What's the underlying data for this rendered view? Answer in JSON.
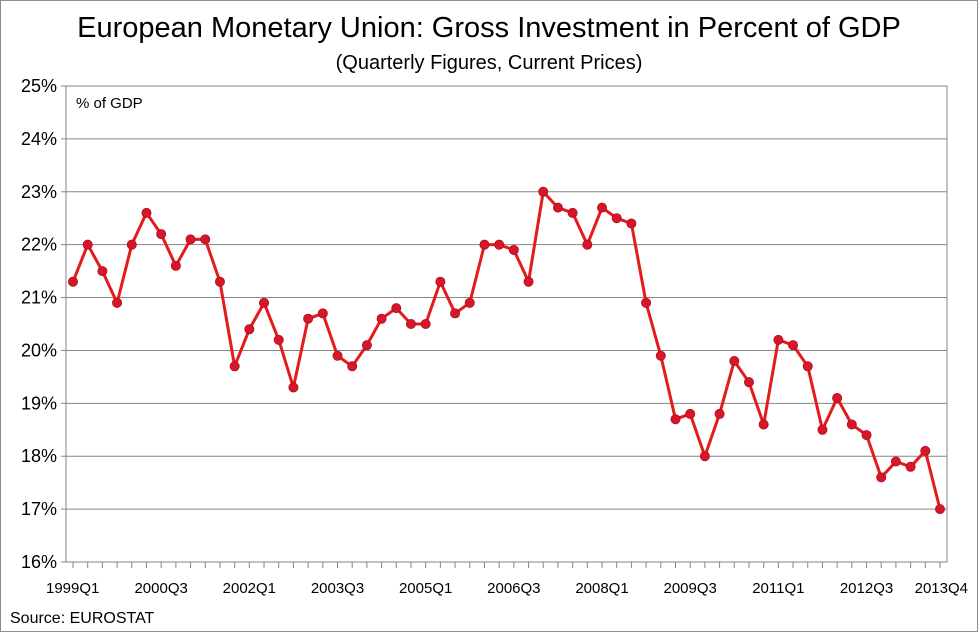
{
  "title": "European Monetary Union: Gross Investment in Percent of GDP",
  "subtitle": "(Quarterly Figures, Current Prices)",
  "source": "Source: EUROSTAT",
  "chart_data": {
    "type": "line",
    "title": "European Monetary Union: Gross Investment in Percent of GDP",
    "subtitle": "(Quarterly Figures, Current Prices)",
    "unit_label": "% of GDP",
    "xlabel": "",
    "ylabel": "",
    "ylim": [
      16,
      25
    ],
    "yticks": [
      "16%",
      "17%",
      "18%",
      "19%",
      "20%",
      "21%",
      "22%",
      "23%",
      "24%",
      "25%"
    ],
    "y_tick_values": [
      16,
      17,
      18,
      19,
      20,
      21,
      22,
      23,
      24,
      25
    ],
    "grid": true,
    "line_color": "#e31b1b",
    "marker_color": "#d7162a",
    "x": [
      "1999Q1",
      "1999Q2",
      "1999Q3",
      "1999Q4",
      "2000Q1",
      "2000Q2",
      "2000Q3",
      "2000Q4",
      "2001Q1",
      "2001Q2",
      "2001Q3",
      "2001Q4",
      "2002Q1",
      "2002Q2",
      "2002Q3",
      "2002Q4",
      "2003Q1",
      "2003Q2",
      "2003Q3",
      "2003Q4",
      "2004Q1",
      "2004Q2",
      "2004Q3",
      "2004Q4",
      "2005Q1",
      "2005Q2",
      "2005Q3",
      "2005Q4",
      "2006Q1",
      "2006Q2",
      "2006Q3",
      "2006Q4",
      "2007Q1",
      "2007Q2",
      "2007Q3",
      "2007Q4",
      "2008Q1",
      "2008Q2",
      "2008Q3",
      "2008Q4",
      "2009Q1",
      "2009Q2",
      "2009Q3",
      "2009Q4",
      "2010Q1",
      "2010Q2",
      "2010Q3",
      "2010Q4",
      "2011Q1",
      "2011Q2",
      "2011Q3",
      "2011Q4",
      "2012Q1",
      "2012Q2",
      "2012Q3",
      "2012Q4",
      "2013Q1",
      "2013Q2",
      "2013Q3",
      "2013Q4"
    ],
    "x_tick_labels": [
      {
        "index": 0,
        "label": "1999Q1"
      },
      {
        "index": 6,
        "label": "2000Q3"
      },
      {
        "index": 12,
        "label": "2002Q1"
      },
      {
        "index": 18,
        "label": "2003Q3"
      },
      {
        "index": 24,
        "label": "2005Q1"
      },
      {
        "index": 30,
        "label": "2006Q3"
      },
      {
        "index": 36,
        "label": "2008Q1"
      },
      {
        "index": 42,
        "label": "2009Q3"
      },
      {
        "index": 48,
        "label": "2011Q1"
      },
      {
        "index": 54,
        "label": "2012Q3"
      },
      {
        "index": 59,
        "label": "2013Q4"
      }
    ],
    "series": [
      {
        "values": [
          21.3,
          22.0,
          21.5,
          20.9,
          22.0,
          22.6,
          22.2,
          21.6,
          22.1,
          22.1,
          21.3,
          19.7,
          20.4,
          20.9,
          20.2,
          19.3,
          20.6,
          20.7,
          19.9,
          19.7,
          20.1,
          20.6,
          20.8,
          20.5,
          20.5,
          21.3,
          20.7,
          20.9,
          22.0,
          22.0,
          21.9,
          21.3,
          23.0,
          22.7,
          22.6,
          22.0,
          22.7,
          22.5,
          22.4,
          20.9,
          19.9,
          18.7,
          18.8,
          18.0,
          18.8,
          19.8,
          19.4,
          18.6,
          20.2,
          20.1,
          19.7,
          18.5,
          19.1,
          18.6,
          18.4,
          17.6,
          17.9,
          17.8,
          18.1,
          17.0
        ]
      }
    ]
  }
}
